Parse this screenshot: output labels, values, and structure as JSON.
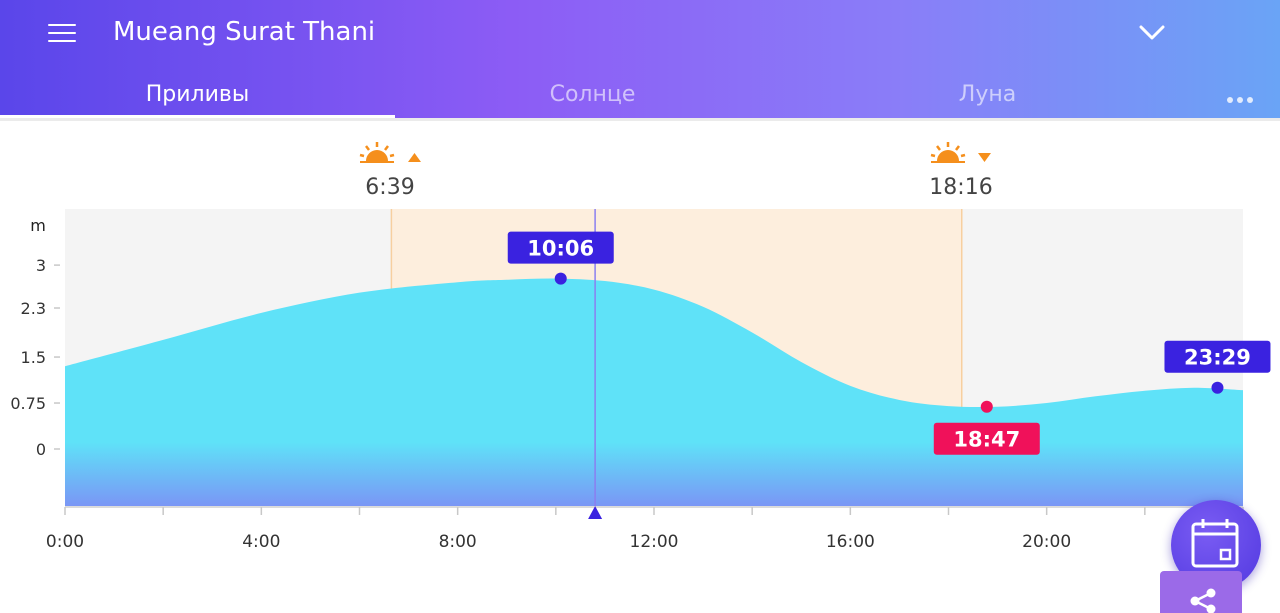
{
  "header": {
    "title": "Mueang Surat Thani",
    "menu_icon": "hamburger-menu-icon",
    "dropdown_icon": "chevron-down-icon",
    "more_icon": "more-horizontal-icon"
  },
  "tabs": [
    {
      "label": "Приливы",
      "active": true
    },
    {
      "label": "Солнце",
      "active": false
    },
    {
      "label": "Луна",
      "active": false
    }
  ],
  "sun": {
    "sunrise": {
      "time": "6:39",
      "icon": "sunrise-icon",
      "direction_icon": "arrow-up-icon"
    },
    "sunset": {
      "time": "18:16",
      "icon": "sunset-icon",
      "direction_icon": "arrow-down-icon"
    }
  },
  "chart_data": {
    "type": "area",
    "ylabel": "m",
    "yticks": [
      "3",
      "2.3",
      "1.5",
      "0.75",
      "0"
    ],
    "xticks": [
      "0:00",
      "4:00",
      "8:00",
      "12:00",
      "16:00",
      "20:00"
    ],
    "xlim": [
      0,
      24
    ],
    "ylim": [
      -0.9,
      3.9
    ],
    "daylight_hours": [
      6.65,
      18.27
    ],
    "current_time_hours": 10.8,
    "x": [
      0,
      2,
      4,
      6,
      8,
      9,
      10,
      11,
      12,
      13,
      14,
      15,
      16,
      17,
      18,
      19,
      20,
      21,
      22,
      23,
      24
    ],
    "y": [
      1.35,
      1.78,
      2.22,
      2.55,
      2.72,
      2.76,
      2.78,
      2.74,
      2.6,
      2.32,
      1.9,
      1.42,
      1.03,
      0.8,
      0.7,
      0.69,
      0.75,
      0.86,
      0.95,
      1.0,
      0.96
    ],
    "extremes": [
      {
        "label": "10:06",
        "hour": 10.1,
        "value": 2.78,
        "type": "high",
        "color": "#3a22e0"
      },
      {
        "label": "18:47",
        "hour": 18.78,
        "value": 0.69,
        "type": "low",
        "color": "#f0115a"
      },
      {
        "label": "23:29",
        "hour": 23.48,
        "value": 1.0,
        "type": "high",
        "color": "#3a22e0"
      }
    ],
    "colors": {
      "water": "#5fe2f8",
      "daylight": "#fdeedd",
      "night": "#f4f4f4",
      "marker": "#3a22e0"
    }
  },
  "fab": {
    "icon": "calendar-icon"
  },
  "share": {
    "icon": "share-icon"
  }
}
